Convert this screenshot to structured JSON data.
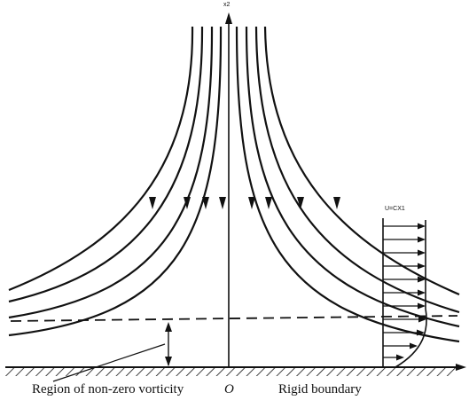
{
  "diagram": {
    "axis_label_x2": "x2",
    "velocity_label": "U=CX1",
    "region_label": "Region of non-zero vorticity",
    "origin_label": "O",
    "boundary_label": "Rigid boundary"
  },
  "colors": {
    "stroke": "#111111",
    "background": "#ffffff"
  }
}
